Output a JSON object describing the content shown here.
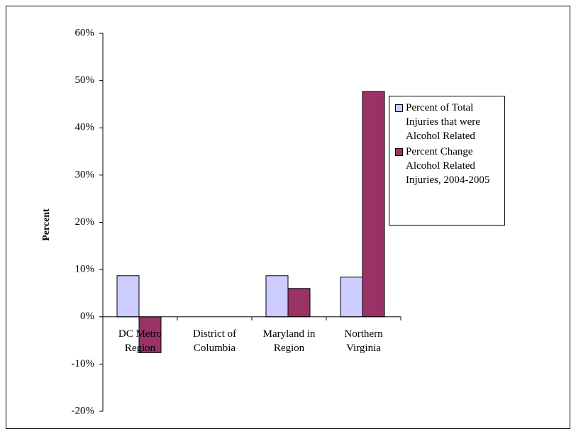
{
  "chart_data": {
    "type": "bar",
    "y_label": "Percent",
    "categories": [
      "DC Metro Region",
      "District of Columbia",
      "Maryland in Region",
      "Northern Virginia"
    ],
    "series": [
      {
        "name": "Percent of Total Injuries that were Alcohol Related",
        "color": "#ccccff",
        "values": [
          8.7,
          null,
          8.7,
          8.4
        ]
      },
      {
        "name": "Percent Change Alcohol Related Injuries, 2004-2005",
        "color": "#993366",
        "values": [
          -7.6,
          null,
          6.0,
          47.7
        ]
      }
    ],
    "ylim": [
      -20,
      60
    ],
    "yticks": [
      {
        "value": -20,
        "label": "-20%"
      },
      {
        "value": -10,
        "label": "-10%"
      },
      {
        "value": 0,
        "label": "0%"
      },
      {
        "value": 10,
        "label": "10%"
      },
      {
        "value": 20,
        "label": "20%"
      },
      {
        "value": 30,
        "label": "30%"
      },
      {
        "value": 40,
        "label": "40%"
      },
      {
        "value": 50,
        "label": "50%"
      },
      {
        "value": 60,
        "label": "60%"
      }
    ],
    "grid": false
  }
}
